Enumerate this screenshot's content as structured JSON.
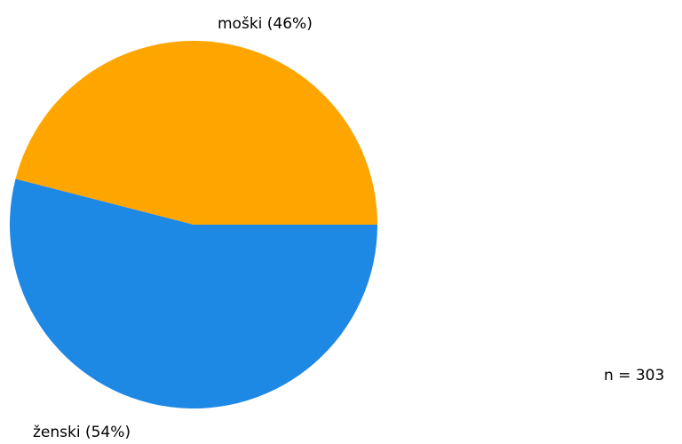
{
  "chart_data": {
    "type": "pie",
    "categories": [
      "moški",
      "ženski"
    ],
    "values": [
      46,
      54
    ],
    "slice_labels": [
      "moški (46%)",
      "ženski (54%)"
    ],
    "colors": [
      "#FFA500",
      "#1E88E5"
    ],
    "sample_size_label": "n = 303"
  }
}
